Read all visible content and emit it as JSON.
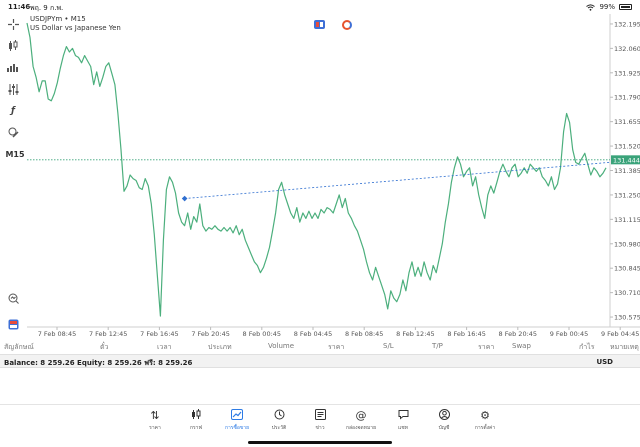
{
  "status_bar": {
    "time": "11:46",
    "date": "พฤ. 9 ก.พ.",
    "battery": "99%"
  },
  "chart": {
    "symbol_line": "USDJPYm • M15",
    "description": "US Dollar vs Japanese Yen",
    "timeframe_label": "M15",
    "current_price": "131.444"
  },
  "chart_data": {
    "type": "line",
    "symbol": "USDJPYm",
    "timeframe": "M15",
    "x_tick_labels": [
      "7 Feb 08:45",
      "7 Feb 12:45",
      "7 Feb 16:45",
      "7 Feb 20:45",
      "8 Feb 00:45",
      "8 Feb 04:45",
      "8 Feb 08:45",
      "8 Feb 12:45",
      "8 Feb 16:45",
      "8 Feb 20:45",
      "9 Feb 00:45",
      "9 Feb 04:45"
    ],
    "y_tick_labels": [
      "132.195",
      "132.060",
      "131.925",
      "131.790",
      "131.655",
      "131.520",
      "131.385",
      "131.250",
      "131.115",
      "130.980",
      "130.845",
      "130.710",
      "130.575"
    ],
    "ylim": [
      130.52,
      132.25
    ],
    "series": [
      {
        "color": "#4caf7d",
        "values": [
          132.2,
          132.12,
          131.96,
          131.9,
          131.82,
          131.88,
          131.88,
          131.78,
          131.77,
          131.81,
          131.87,
          131.95,
          132.02,
          132.07,
          132.04,
          132.06,
          132.02,
          132.01,
          131.98,
          132.02,
          131.99,
          131.96,
          131.86,
          131.93,
          131.85,
          131.9,
          131.96,
          131.98,
          131.92,
          131.86,
          131.7,
          131.5,
          131.27,
          131.3,
          131.36,
          131.34,
          131.33,
          131.29,
          131.28,
          131.34,
          131.3,
          131.2,
          131.03,
          130.8,
          130.58,
          131.0,
          131.28,
          131.35,
          131.32,
          131.26,
          131.15,
          131.1,
          131.08,
          131.15,
          131.06,
          131.13,
          131.1,
          131.2,
          131.08,
          131.05,
          131.07,
          131.06,
          131.08,
          131.06,
          131.05,
          131.07,
          131.05,
          131.07,
          131.04,
          131.08,
          131.03,
          131.06,
          131.0,
          130.96,
          130.92,
          130.88,
          130.86,
          130.82,
          130.85,
          130.9,
          130.96,
          131.05,
          131.15,
          131.28,
          131.32,
          131.25,
          131.2,
          131.15,
          131.12,
          131.18,
          131.1,
          131.15,
          131.12,
          131.16,
          131.12,
          131.15,
          131.12,
          131.17,
          131.15,
          131.18,
          131.17,
          131.15,
          131.2,
          131.25,
          131.18,
          131.23,
          131.15,
          131.12,
          131.08,
          131.05,
          131.0,
          130.95,
          130.88,
          130.82,
          130.78,
          130.85,
          130.8,
          130.75,
          130.7,
          130.62,
          130.72,
          130.68,
          130.66,
          130.7,
          130.78,
          130.72,
          130.82,
          130.88,
          130.8,
          130.85,
          130.8,
          130.88,
          130.82,
          130.78,
          130.86,
          130.82,
          130.9,
          130.98,
          131.1,
          131.2,
          131.32,
          131.4,
          131.46,
          131.42,
          131.35,
          131.38,
          131.4,
          131.3,
          131.35,
          131.25,
          131.18,
          131.12,
          131.25,
          131.3,
          131.26,
          131.32,
          131.38,
          131.42,
          131.38,
          131.35,
          131.4,
          131.42,
          131.35,
          131.37,
          131.4,
          131.37,
          131.42,
          131.4,
          131.38,
          131.4,
          131.35,
          131.33,
          131.3,
          131.35,
          131.28,
          131.31,
          131.4,
          131.6,
          131.7,
          131.65,
          131.5,
          131.43,
          131.42,
          131.45,
          131.48,
          131.42,
          131.36,
          131.4,
          131.38,
          131.35,
          131.37,
          131.4
        ]
      }
    ],
    "trade_line": {
      "from": {
        "x_index": 52,
        "price": 131.23
      },
      "to": {
        "x_index": 202,
        "price": 131.444
      }
    },
    "grid": false
  },
  "table": {
    "headers": [
      "สัญลักษณ์",
      "ตั๋ว",
      "เวลา",
      "ประเภท",
      "Volume",
      "ราคา",
      "S/L",
      "T/P",
      "ราคา",
      "Swap",
      "กำไร",
      "หมายเหตุ"
    ],
    "balance": "Balance: 8 259.26 Equity: 8 259.26 ฟรี: 8 259.26",
    "currency": "USD"
  },
  "nav": {
    "items": [
      {
        "label": "ราคา",
        "icon": "arrows-updown-icon"
      },
      {
        "label": "กราฟ",
        "icon": "candles-icon"
      },
      {
        "label": "การซื้อขาย",
        "icon": "trade-chart-icon",
        "active": true
      },
      {
        "label": "ประวัติ",
        "icon": "history-icon"
      },
      {
        "label": "ข่าว",
        "icon": "news-icon"
      },
      {
        "label": "กล่องจดหมาย",
        "icon": "mailbox-icon"
      },
      {
        "label": "แชท",
        "icon": "chat-icon"
      },
      {
        "label": "บัญชี",
        "icon": "account-icon"
      },
      {
        "label": "การตั้งค่า",
        "icon": "gear-icon"
      }
    ]
  },
  "colors": {
    "line": "#4caf7d",
    "price_tag": "#3aa37a",
    "accent": "#2d7be5",
    "marker_blue": "#2f6fd0",
    "marker_red": "#e74c3c"
  }
}
